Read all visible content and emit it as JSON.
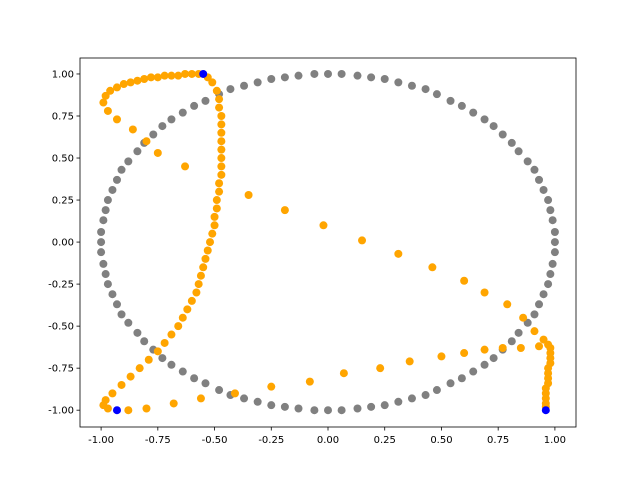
{
  "chart_data": {
    "type": "scatter",
    "xlim": [
      -1.093,
      1.093
    ],
    "ylim": [
      -1.1,
      1.095
    ],
    "xticks": [
      {
        "value": -1,
        "label": "-1.00"
      },
      {
        "value": -0.75,
        "label": "-0.75"
      },
      {
        "value": -0.5,
        "label": "-0.50"
      },
      {
        "value": -0.25,
        "label": "-0.25"
      },
      {
        "value": 0,
        "label": "0.00"
      },
      {
        "value": 0.25,
        "label": "0.25"
      },
      {
        "value": 0.5,
        "label": "0.50"
      },
      {
        "value": 0.75,
        "label": "0.75"
      },
      {
        "value": 1,
        "label": "1.00"
      }
    ],
    "yticks": [
      {
        "value": -1,
        "label": "-1.00"
      },
      {
        "value": -0.75,
        "label": "-0.75"
      },
      {
        "value": -0.5,
        "label": "-0.50"
      },
      {
        "value": -0.25,
        "label": "-0.25"
      },
      {
        "value": 0,
        "label": "0.00"
      },
      {
        "value": 0.25,
        "label": "0.25"
      },
      {
        "value": 0.5,
        "label": "0.50"
      },
      {
        "value": 0.75,
        "label": "0.75"
      },
      {
        "value": 1,
        "label": "1.00"
      }
    ],
    "series": [
      {
        "color": "#808080",
        "x": [
          1,
          1,
          0.99,
          0.98,
          0.97,
          0.95,
          0.93,
          0.91,
          0.88,
          0.84,
          0.81,
          0.77,
          0.73,
          0.69,
          0.64,
          0.59,
          0.54,
          0.48,
          0.43,
          0.37,
          0.31,
          0.25,
          0.19,
          0.13,
          0.06,
          0,
          -0.06,
          -0.13,
          -0.19,
          -0.25,
          -0.31,
          -0.37,
          -0.43,
          -0.48,
          -0.54,
          -0.59,
          -0.64,
          -0.69,
          -0.73,
          -0.77,
          -0.81,
          -0.84,
          -0.88,
          -0.91,
          -0.93,
          -0.95,
          -0.97,
          -0.98,
          -0.99,
          -1,
          -1,
          -1,
          -0.99,
          -0.98,
          -0.97,
          -0.95,
          -0.93,
          -0.91,
          -0.88,
          -0.84,
          -0.81,
          -0.77,
          -0.73,
          -0.69,
          -0.64,
          -0.59,
          -0.54,
          -0.48,
          -0.43,
          -0.37,
          -0.31,
          -0.25,
          -0.19,
          -0.13,
          -0.06,
          0,
          0.06,
          0.13,
          0.19,
          0.25,
          0.31,
          0.37,
          0.43,
          0.48,
          0.54,
          0.59,
          0.64,
          0.69,
          0.73,
          0.77,
          0.81,
          0.84,
          0.88,
          0.91,
          0.93,
          0.95,
          0.97,
          0.98,
          0.99,
          1
        ],
        "y": [
          0,
          0.06,
          0.13,
          0.19,
          0.25,
          0.31,
          0.37,
          0.43,
          0.48,
          0.54,
          0.59,
          0.64,
          0.69,
          0.73,
          0.77,
          0.81,
          0.84,
          0.88,
          0.91,
          0.93,
          0.95,
          0.97,
          0.98,
          0.99,
          1,
          1,
          1,
          0.99,
          0.98,
          0.97,
          0.95,
          0.93,
          0.91,
          0.88,
          0.84,
          0.81,
          0.77,
          0.73,
          0.69,
          0.64,
          0.59,
          0.54,
          0.48,
          0.43,
          0.37,
          0.31,
          0.25,
          0.19,
          0.13,
          0.06,
          0,
          -0.06,
          -0.13,
          -0.19,
          -0.25,
          -0.31,
          -0.37,
          -0.43,
          -0.48,
          -0.54,
          -0.59,
          -0.64,
          -0.69,
          -0.73,
          -0.77,
          -0.81,
          -0.84,
          -0.88,
          -0.91,
          -0.93,
          -0.95,
          -0.97,
          -0.98,
          -0.99,
          -1,
          -1,
          -1,
          -0.99,
          -0.98,
          -0.97,
          -0.95,
          -0.93,
          -0.91,
          -0.88,
          -0.84,
          -0.81,
          -0.77,
          -0.73,
          -0.69,
          -0.64,
          -0.59,
          -0.54,
          -0.48,
          -0.43,
          -0.37,
          -0.31,
          -0.25,
          -0.19,
          -0.13,
          -0.06
        ]
      },
      {
        "color": "#ffa500",
        "x": [
          -0.57,
          -0.6,
          -0.63,
          -0.66,
          -0.69,
          -0.72,
          -0.75,
          -0.78,
          -0.81,
          -0.84,
          -0.87,
          -0.9,
          -0.93,
          -0.96,
          -0.98,
          -0.99,
          -0.97,
          -0.93,
          -0.86,
          -0.8,
          -0.75,
          -0.63,
          -0.35,
          -0.19,
          -0.02,
          0.15,
          0.31,
          0.46,
          0.6,
          0.69,
          0.79,
          0.86,
          0.91,
          0.95,
          0.97,
          0.98,
          0.98,
          0.98,
          0.98,
          0.97,
          0.97,
          0.97,
          0.97,
          0.96,
          0.96,
          0.96,
          0.96,
          0.96,
          0.93,
          0.85,
          0.77,
          0.69,
          0.6,
          0.5,
          0.36,
          0.23,
          0.07,
          -0.08,
          -0.25,
          -0.41,
          -0.56,
          -0.68,
          -0.8,
          -0.88,
          -0.97,
          -0.99,
          -0.98,
          -0.95,
          -0.91,
          -0.87,
          -0.83,
          -0.79,
          -0.75,
          -0.72,
          -0.69,
          -0.66,
          -0.64,
          -0.62,
          -0.6,
          -0.58,
          -0.57,
          -0.56,
          -0.55,
          -0.54,
          -0.53,
          -0.52,
          -0.51,
          -0.5,
          -0.5,
          -0.49,
          -0.49,
          -0.48,
          -0.48,
          -0.47,
          -0.47,
          -0.47,
          -0.47,
          -0.47,
          -0.47,
          -0.47,
          -0.47,
          -0.48,
          -0.48,
          -0.49,
          -0.51,
          -0.53
        ],
        "y": [
          1,
          1,
          1,
          0.99,
          0.99,
          0.99,
          0.98,
          0.98,
          0.97,
          0.96,
          0.95,
          0.94,
          0.92,
          0.9,
          0.87,
          0.83,
          0.78,
          0.73,
          0.67,
          0.6,
          0.53,
          0.45,
          0.28,
          0.19,
          0.1,
          0.01,
          -0.07,
          -0.15,
          -0.23,
          -0.3,
          -0.37,
          -0.45,
          -0.53,
          -0.58,
          -0.61,
          -0.63,
          -0.66,
          -0.69,
          -0.72,
          -0.75,
          -0.78,
          -0.81,
          -0.84,
          -0.87,
          -0.9,
          -0.93,
          -0.96,
          -0.98,
          -0.62,
          -0.63,
          -0.63,
          -0.64,
          -0.66,
          -0.68,
          -0.71,
          -0.75,
          -0.78,
          -0.83,
          -0.86,
          -0.9,
          -0.93,
          -0.96,
          -0.99,
          -1,
          -0.99,
          -0.97,
          -0.94,
          -0.9,
          -0.85,
          -0.8,
          -0.75,
          -0.7,
          -0.65,
          -0.6,
          -0.55,
          -0.5,
          -0.45,
          -0.4,
          -0.35,
          -0.3,
          -0.25,
          -0.2,
          -0.15,
          -0.1,
          -0.05,
          0,
          0.05,
          0.1,
          0.15,
          0.2,
          0.25,
          0.3,
          0.35,
          0.4,
          0.45,
          0.5,
          0.55,
          0.6,
          0.65,
          0.7,
          0.75,
          0.8,
          0.85,
          0.9,
          0.95,
          0.98
        ]
      },
      {
        "color": "#0000ff",
        "x": [
          -0.55,
          -0.93,
          0.96
        ],
        "y": [
          1,
          -1,
          -1
        ]
      }
    ]
  }
}
